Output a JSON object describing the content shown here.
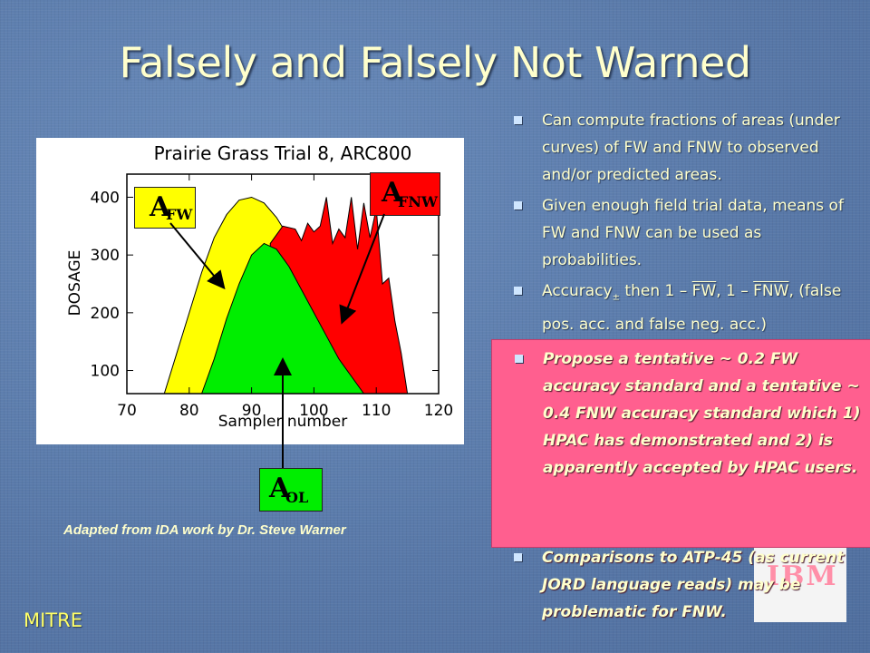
{
  "slide": {
    "title": "Falsely and Falsely Not Warned",
    "caption": "Adapted from IDA work by Dr. Steve Warner",
    "footer_logo": "MITRE",
    "ibm_logo": "IBM"
  },
  "chart_data": {
    "type": "area",
    "title": "Prairie Grass Trial 8, ARC800",
    "xlabel": "Sampler number",
    "ylabel": "DOSAGE",
    "xlim": [
      70,
      120
    ],
    "ylim": [
      60,
      440
    ],
    "x_ticks": [
      70,
      80,
      90,
      100,
      110,
      120
    ],
    "y_ticks": [
      100,
      200,
      300,
      400
    ],
    "series": [
      {
        "name": "A FW",
        "color": "#ffff00",
        "x": [
          76,
          78,
          80,
          82,
          84,
          86,
          88,
          90,
          92,
          94,
          96,
          98,
          99
        ],
        "y": [
          60,
          130,
          200,
          270,
          330,
          370,
          395,
          400,
          390,
          365,
          330,
          300,
          280
        ]
      },
      {
        "name": "A FNW",
        "color": "#ff0000",
        "x": [
          93,
          95,
          97,
          98,
          99,
          100,
          101,
          102,
          103,
          104,
          105,
          106,
          107,
          108,
          109,
          110,
          111,
          112,
          113,
          114,
          115
        ],
        "y": [
          320,
          350,
          345,
          325,
          355,
          340,
          350,
          400,
          320,
          345,
          330,
          400,
          310,
          390,
          330,
          380,
          250,
          260,
          185,
          130,
          60
        ]
      },
      {
        "name": "A OL",
        "color": "#00ee00",
        "x": [
          82,
          84,
          86,
          88,
          90,
          92,
          94,
          96,
          98,
          100,
          102,
          104,
          106,
          108
        ],
        "y": [
          60,
          120,
          190,
          250,
          300,
          320,
          310,
          280,
          240,
          200,
          160,
          120,
          90,
          60
        ]
      }
    ],
    "labels": {
      "fw": {
        "main": "A",
        "sub": "FW"
      },
      "fnw": {
        "main": "A",
        "sub": "FNW"
      },
      "ol": {
        "main": "A",
        "sub": "OL"
      }
    }
  },
  "bullets": [
    "Can compute fractions of areas (under curves) of FW and FNW to observed and/or predicted areas.",
    "Given enough field trial data, means of  FW and  FNW can be used as probabilities.",
    {
      "a": "Accuracy",
      "b": "±",
      "c": " then 1 – ",
      "d": "FW",
      "e": ", 1 – ",
      "f": "FNW",
      "g": ", (false pos. acc. and false neg. acc.)"
    }
  ],
  "pink_bullet": "Propose a tentative ~ 0.2 FW accuracy standard and a tentative ~ 0.4 FNW accuracy standard which 1) HPAC has demonstrated and 2) is apparently accepted by HPAC users.",
  "last_bullet": "Comparisons to ATP-45 (as current JORD language reads) may be problematic for FNW."
}
